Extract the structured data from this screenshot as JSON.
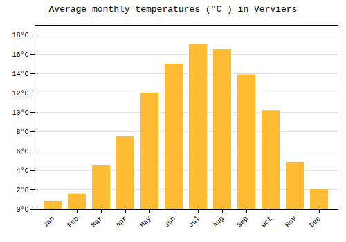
{
  "chart_data": {
    "type": "bar",
    "title": "Average monthly temperatures (°C ) in Verviers",
    "categories": [
      "Jan",
      "Feb",
      "Mar",
      "Apr",
      "May",
      "Jun",
      "Jul",
      "Aug",
      "Sep",
      "Oct",
      "Nov",
      "Dec"
    ],
    "values": [
      0.8,
      1.6,
      4.5,
      7.5,
      12.0,
      15.0,
      17.0,
      16.5,
      13.9,
      10.2,
      4.8,
      2.0
    ],
    "color": "#FFBB33",
    "ylim": [
      0,
      19.0
    ],
    "yticks": [
      {
        "value": 0,
        "label": "0°C"
      },
      {
        "value": 2,
        "label": "2°C"
      },
      {
        "value": 4,
        "label": "4°C"
      },
      {
        "value": 6,
        "label": "6°C"
      },
      {
        "value": 8,
        "label": "8°C"
      },
      {
        "value": 10,
        "label": "10°C"
      },
      {
        "value": 12,
        "label": "12°C"
      },
      {
        "value": 14,
        "label": "14°C"
      },
      {
        "value": 16,
        "label": "16°C"
      },
      {
        "value": 18,
        "label": "18°C"
      }
    ],
    "grid": true
  }
}
